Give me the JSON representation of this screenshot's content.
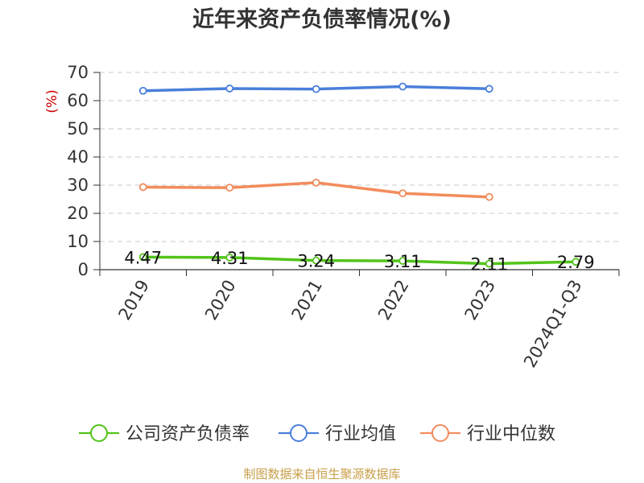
{
  "chart_data": {
    "type": "line",
    "title": "近年来资产负债率情况(%)",
    "ylabel": "(%)",
    "xlabel": "",
    "categories": [
      "2019",
      "2020",
      "2021",
      "2022",
      "2023",
      "2024Q1-Q3"
    ],
    "ylim": [
      0,
      70
    ],
    "yticks": [
      0,
      10,
      20,
      30,
      40,
      50,
      60,
      70
    ],
    "grid": true,
    "legend_position": "bottom",
    "series": [
      {
        "name": "公司资产负债率",
        "color": "#52c41a",
        "values": [
          4.47,
          4.31,
          3.24,
          3.11,
          2.11,
          2.79
        ],
        "labels": [
          "4.47",
          "4.31",
          "3.24",
          "3.11",
          "2.11",
          "2.79"
        ]
      },
      {
        "name": "行业均值",
        "color": "#4a7fdb",
        "values": [
          63.5,
          64.3,
          64.1,
          65.0,
          64.2,
          null
        ]
      },
      {
        "name": "行业中位数",
        "color": "#f28c5c",
        "values": [
          29.3,
          29.1,
          30.9,
          27.1,
          25.8,
          null
        ]
      }
    ]
  },
  "footer": {
    "source": "制图数据来自恒生聚源数据库",
    "source_color": "#c8a04a"
  },
  "ylabel_color": "#cc0000"
}
